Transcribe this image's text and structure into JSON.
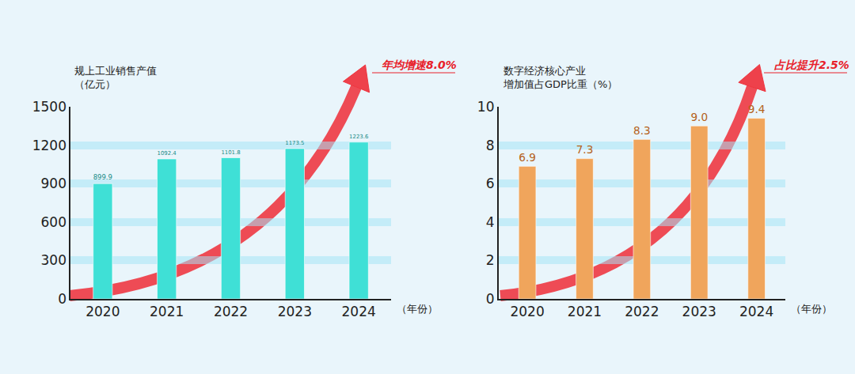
{
  "chart_data": [
    {
      "type": "bar",
      "y_label": [
        "规上工业销售产值",
        "（亿元）"
      ],
      "x_label": "（年份）",
      "annotation": "年均增速8.0%",
      "categories": [
        "2020",
        "2021",
        "2022",
        "2023",
        "2024"
      ],
      "values": [
        899.9,
        1092.4,
        1101.8,
        1173.5,
        1223.6
      ],
      "color": "#3fe0d6",
      "ylim": [
        0,
        1500
      ],
      "yticks": [
        0,
        300,
        600,
        900,
        1200,
        1500
      ],
      "grid": true,
      "data_labels": true
    },
    {
      "type": "bar",
      "y_label": [
        "数字经济核心产业",
        "增加值占GDP比重（%）"
      ],
      "x_label": "（年份）",
      "annotation": "占比提升2.5%",
      "categories": [
        "2020",
        "2021",
        "2022",
        "2023",
        "2024"
      ],
      "values": [
        6.9,
        7.3,
        8.3,
        9.0,
        9.4
      ],
      "value_labels": [
        "6.9",
        "7.3",
        "8.3",
        "9.0",
        "9.4"
      ],
      "color": "#f0a55c",
      "ylim": [
        0,
        10
      ],
      "yticks": [
        0,
        2,
        4,
        6,
        8,
        10
      ],
      "grid": true,
      "data_labels": true
    }
  ]
}
